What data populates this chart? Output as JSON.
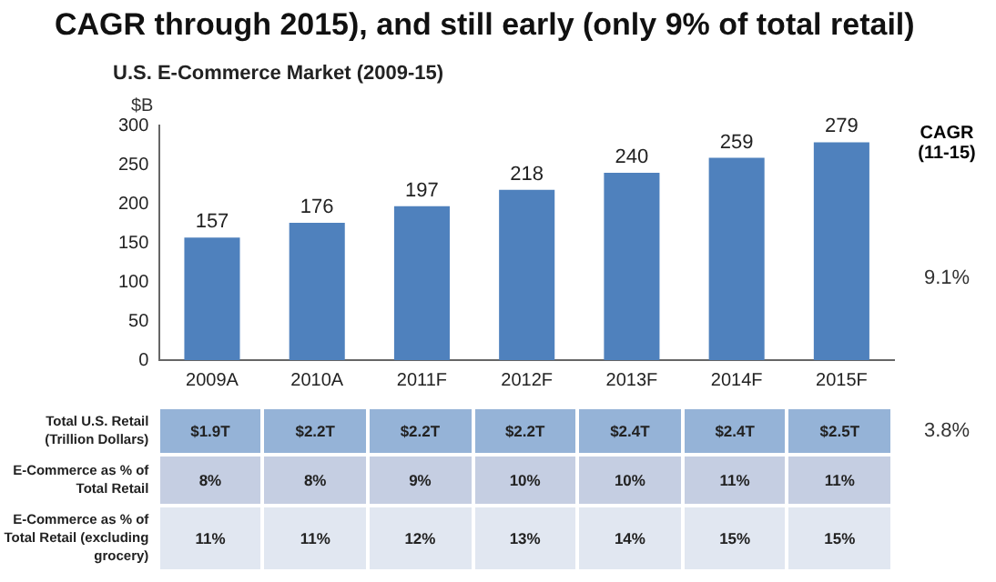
{
  "chart_data": {
    "type": "bar",
    "title": "U.S. E-Commerce Market (2009-15)",
    "ylabel": "$B",
    "categories": [
      "2009A",
      "2010A",
      "2011F",
      "2012F",
      "2013F",
      "2014F",
      "2015F"
    ],
    "values": [
      157,
      176,
      197,
      218,
      240,
      259,
      279
    ],
    "color": "#4f81bd",
    "ylim": [
      0,
      300
    ],
    "yticks": [
      0,
      50,
      100,
      150,
      200,
      250,
      300
    ],
    "grid": false,
    "legend": false,
    "data_labels": true,
    "annotations": [
      "CAGR through 2015), and still early (only 9% of total retail)",
      "CAGR (11-15)",
      "9.1%",
      "Total U.S. Retail (Trillion Dollars)",
      "$1.9T",
      "$2.2T",
      "$2.2T",
      "$2.2T",
      "$2.4T",
      "$2.4T",
      "$2.5T",
      "3.8%",
      "E-Commerce as % of Total Retail",
      "8%",
      "8%",
      "9%",
      "10%",
      "10%",
      "11%",
      "11%",
      "E-Commerce as % of Total Retail (excluding grocery)",
      "11%",
      "11%",
      "12%",
      "13%",
      "14%",
      "15%",
      "15%"
    ]
  }
}
